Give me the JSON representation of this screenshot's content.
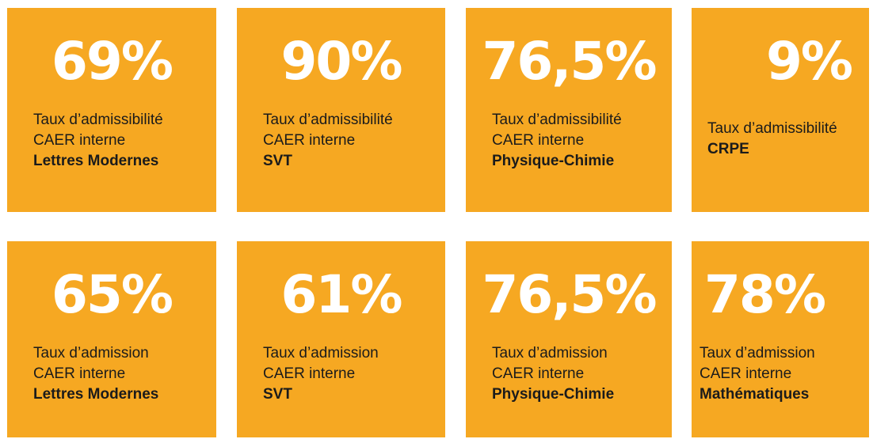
{
  "cards": [
    {
      "value": "69%",
      "lines": [
        "Taux d’admissibilité",
        "CAER interne"
      ],
      "subject": "Lettres Modernes"
    },
    {
      "value": "90%",
      "lines": [
        "Taux d’admissibilité",
        "CAER interne"
      ],
      "subject": "SVT"
    },
    {
      "value": "76,5%",
      "lines": [
        "Taux d’admissibilité",
        "CAER interne"
      ],
      "subject": "Physique-Chimie"
    },
    {
      "value": "9%",
      "lines": [
        "Taux d’admissibilité"
      ],
      "subject": "CRPE"
    },
    {
      "value": "65%",
      "lines": [
        "Taux d’admission",
        "CAER interne"
      ],
      "subject": "Lettres Modernes"
    },
    {
      "value": "61%",
      "lines": [
        "Taux d’admission",
        "CAER interne"
      ],
      "subject": "SVT"
    },
    {
      "value": "76,5%",
      "lines": [
        "Taux d’admission",
        "CAER interne"
      ],
      "subject": "Physique-Chimie"
    },
    {
      "value": "78%",
      "lines": [
        "Taux d’admission",
        "CAER interne"
      ],
      "subject": "Mathématiques"
    }
  ]
}
